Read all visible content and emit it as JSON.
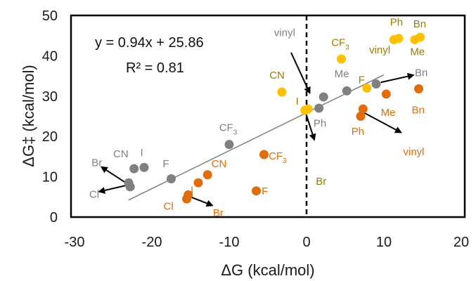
{
  "chart_data": {
    "type": "scatter",
    "xlabel": "ΔG (kcal/mol)",
    "ylabel": "ΔG‡ (kcal/mol)",
    "xlim": [
      -30,
      20
    ],
    "ylim": [
      0,
      50
    ],
    "x_ticks": [
      "-30",
      "-20",
      "-10",
      "0",
      "10",
      "20"
    ],
    "y_ticks": [
      "0",
      "10",
      "20",
      "30",
      "40",
      "50"
    ],
    "grid": false,
    "legend": "none",
    "fit": {
      "equation": "y = 0.94x + 25.86",
      "r_squared": "R² = 0.81",
      "slope": 0.94,
      "intercept": 25.86,
      "x_range": [
        -23,
        10
      ]
    },
    "reference_line_x": 0,
    "colors": {
      "gray": "#808080",
      "orange": "#E36C0A",
      "yellow": "#FFC000",
      "olive": "#9C7A00",
      "line": "#7F7F7F"
    },
    "series": [
      {
        "color": "#808080",
        "points": [
          {
            "label": "Br",
            "x": -23.0,
            "y": 8.5
          },
          {
            "label": "Cl",
            "x": -22.8,
            "y": 7.5
          },
          {
            "label": "CN",
            "x": -22.3,
            "y": 12.0
          },
          {
            "label": "I",
            "x": -21.0,
            "y": 12.3
          },
          {
            "label": "F",
            "x": -17.5,
            "y": 9.5
          },
          {
            "label": "CF3",
            "x": -10.0,
            "y": 18.0
          },
          {
            "label": "Ph",
            "x": 1.6,
            "y": 27.0
          },
          {
            "label": "vinyl",
            "x": 2.2,
            "y": 29.8
          },
          {
            "label": "Me",
            "x": 5.2,
            "y": 31.3
          },
          {
            "label": "Bn",
            "x": 9.0,
            "y": 33.0
          }
        ]
      },
      {
        "color": "#E36C0A",
        "points": [
          {
            "label": "Cl",
            "x": -15.5,
            "y": 4.5
          },
          {
            "label": "Br",
            "x": -15.3,
            "y": 5.5
          },
          {
            "label": "I",
            "x": -14.0,
            "y": 8.5
          },
          {
            "label": "CN",
            "x": -12.8,
            "y": 10.5
          },
          {
            "label": "F",
            "x": -6.5,
            "y": 6.5
          },
          {
            "label": "CF3",
            "x": -5.5,
            "y": 15.5
          },
          {
            "label": "Ph",
            "x": 7.0,
            "y": 25.0
          },
          {
            "label": "vinyl",
            "x": 7.3,
            "y": 26.8
          },
          {
            "label": "Me",
            "x": 10.3,
            "y": 30.5
          },
          {
            "label": "Bn",
            "x": 14.5,
            "y": 31.8
          }
        ]
      },
      {
        "color": "#FFC000",
        "points": [
          {
            "label": "CN",
            "x": -3.2,
            "y": 31.0
          },
          {
            "label": "I",
            "x": -0.2,
            "y": 26.5
          },
          {
            "label": "Br",
            "x": 0.2,
            "y": 26.8
          },
          {
            "label": "CF3",
            "x": 4.5,
            "y": 39.2
          },
          {
            "label": "F",
            "x": 7.8,
            "y": 32.0
          },
          {
            "label": "vinyl",
            "x": 11.3,
            "y": 44.0
          },
          {
            "label": "Ph",
            "x": 11.9,
            "y": 44.3
          },
          {
            "label": "Me",
            "x": 14.0,
            "y": 44.0
          },
          {
            "label": "Bn",
            "x": 14.7,
            "y": 44.6
          }
        ]
      }
    ],
    "annotations": [
      {
        "text": "Br",
        "sub": "",
        "color": "#808080",
        "x": -27.8,
        "y": 12.6
      },
      {
        "text": "Cl",
        "sub": "",
        "color": "#808080",
        "x": -28.1,
        "y": 4.8
      },
      {
        "text": "CN",
        "sub": "",
        "color": "#808080",
        "x": -25.0,
        "y": 14.8
      },
      {
        "text": "I",
        "sub": "",
        "color": "#808080",
        "x": -21.5,
        "y": 15.2
      },
      {
        "text": "F",
        "sub": "",
        "color": "#808080",
        "x": -18.6,
        "y": 12.4
      },
      {
        "text": "CF",
        "sub": "3",
        "color": "#808080",
        "x": -11.3,
        "y": 21.3
      },
      {
        "text": "vinyl",
        "sub": "",
        "color": "#808080",
        "x": -4.2,
        "y": 44.9
      },
      {
        "text": "Me",
        "sub": "",
        "color": "#808080",
        "x": 3.6,
        "y": 34.7
      },
      {
        "text": "Ph",
        "sub": "",
        "color": "#808080",
        "x": 0.9,
        "y": 22.4
      },
      {
        "text": "Bn",
        "sub": "",
        "color": "#808080",
        "x": 14.0,
        "y": 34.9
      },
      {
        "text": "CN",
        "sub": "",
        "color": "#E36C0A",
        "x": -12.3,
        "y": 12.4
      },
      {
        "text": "I",
        "sub": "",
        "color": "#E36C0A",
        "x": -15.0,
        "y": 5.8
      },
      {
        "text": "Cl",
        "sub": "",
        "color": "#E36C0A",
        "x": -18.5,
        "y": 1.8
      },
      {
        "text": "Br",
        "sub": "",
        "color": "#E36C0A",
        "x": -12.1,
        "y": 0.2
      },
      {
        "text": "F",
        "sub": "",
        "color": "#E36C0A",
        "x": -5.8,
        "y": 5.6
      },
      {
        "text": "CF",
        "sub": "3",
        "color": "#E36C0A",
        "x": -4.9,
        "y": 14.3
      },
      {
        "text": "Ph",
        "sub": "",
        "color": "#E36C0A",
        "x": 5.8,
        "y": 20.4
      },
      {
        "text": "Me",
        "sub": "",
        "color": "#E36C0A",
        "x": 9.6,
        "y": 25.1
      },
      {
        "text": "Bn",
        "sub": "",
        "color": "#E36C0A",
        "x": 13.6,
        "y": 25.7
      },
      {
        "text": "vinyl",
        "sub": "",
        "color": "#E36C0A",
        "x": 12.5,
        "y": 15.3
      },
      {
        "text": "CN",
        "sub": "",
        "color": "#9C7A00",
        "x": -4.8,
        "y": 34.3
      },
      {
        "text": "I",
        "sub": "",
        "color": "#9C7A00",
        "x": -1.4,
        "y": 27.9
      },
      {
        "text": "Br",
        "sub": "",
        "color": "#9C7A00",
        "x": 1.2,
        "y": 8.0
      },
      {
        "text": "CF",
        "sub": "3",
        "color": "#9C7A00",
        "x": 3.2,
        "y": 42.4
      },
      {
        "text": "F",
        "sub": "",
        "color": "#9C7A00",
        "x": 6.7,
        "y": 33.2
      },
      {
        "text": "vinyl",
        "sub": "",
        "color": "#9C7A00",
        "x": 8.1,
        "y": 40.6
      },
      {
        "text": "Ph",
        "sub": "",
        "color": "#9C7A00",
        "x": 10.8,
        "y": 47.5
      },
      {
        "text": "Bn",
        "sub": "",
        "color": "#9C7A00",
        "x": 13.8,
        "y": 47.0
      },
      {
        "text": "Me",
        "sub": "",
        "color": "#9C7A00",
        "x": 13.4,
        "y": 40.2
      }
    ],
    "arrows": [
      {
        "from": [
          -2.0,
          40.8
        ],
        "to": [
          0.4,
          30.8
        ]
      },
      {
        "from": [
          -0.1,
          25.8
        ],
        "to": [
          1.0,
          19.2
        ]
      },
      {
        "from": [
          9.6,
          33.4
        ],
        "to": [
          13.8,
          35.2
        ]
      },
      {
        "from": [
          7.5,
          25.8
        ],
        "to": [
          12.2,
          21.0
        ]
      },
      {
        "from": [
          -23.2,
          8.3
        ],
        "to": [
          -26.5,
          12.4
        ]
      },
      {
        "from": [
          -23.2,
          7.9
        ],
        "to": [
          -26.8,
          6.3
        ]
      },
      {
        "from": [
          -15.0,
          5.0
        ],
        "to": [
          -12.2,
          2.9
        ]
      }
    ]
  }
}
